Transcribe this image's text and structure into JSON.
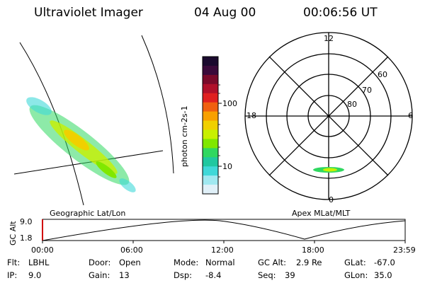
{
  "header": {
    "instrument": "Ultraviolet Imager",
    "date": "04 Aug 00",
    "time": "00:06:56 UT"
  },
  "colorbar": {
    "label": "photon cm-2s-1",
    "ticks": [
      "100",
      "10"
    ],
    "colors": [
      "#1a0a2e",
      "#3a0a3a",
      "#7a0a2a",
      "#b0102a",
      "#e02020",
      "#f06010",
      "#f8a000",
      "#f0d000",
      "#c8f000",
      "#80e800",
      "#30d860",
      "#20c8a0",
      "#40d8d8",
      "#a0e8f0",
      "#e0f0f8"
    ]
  },
  "geo_panel": {
    "label": "Geographic Lat/Lon"
  },
  "polar_panel": {
    "label": "Apex MLat/MLT",
    "mlt_labels": {
      "top": "12",
      "left": "18",
      "right": "6",
      "bottom": "0"
    },
    "lat_labels": [
      "60",
      "70",
      "80"
    ]
  },
  "altitude_plot": {
    "ylabel": "GC Alt",
    "yticks": [
      "9.0",
      "1.8"
    ],
    "xticks": [
      "00:00",
      "06:00",
      "12:00",
      "18:00",
      "23:59"
    ]
  },
  "footer": {
    "row1": [
      {
        "key": "Flt:",
        "val": "LBHL"
      },
      {
        "key": "Door:",
        "val": "Open"
      },
      {
        "key": "Mode:",
        "val": "Normal"
      },
      {
        "key": "GC Alt:",
        "val": "2.9 Re"
      },
      {
        "key": "GLat:",
        "val": "-67.0"
      }
    ],
    "row2": [
      {
        "key": "IP:",
        "val": "9.0"
      },
      {
        "key": "Gain:",
        "val": "13"
      },
      {
        "key": "Dsp:",
        "val": "-8.4"
      },
      {
        "key": "Seq:",
        "val": "39"
      },
      {
        "key": "GLon:",
        "val": "35.0"
      }
    ]
  }
}
